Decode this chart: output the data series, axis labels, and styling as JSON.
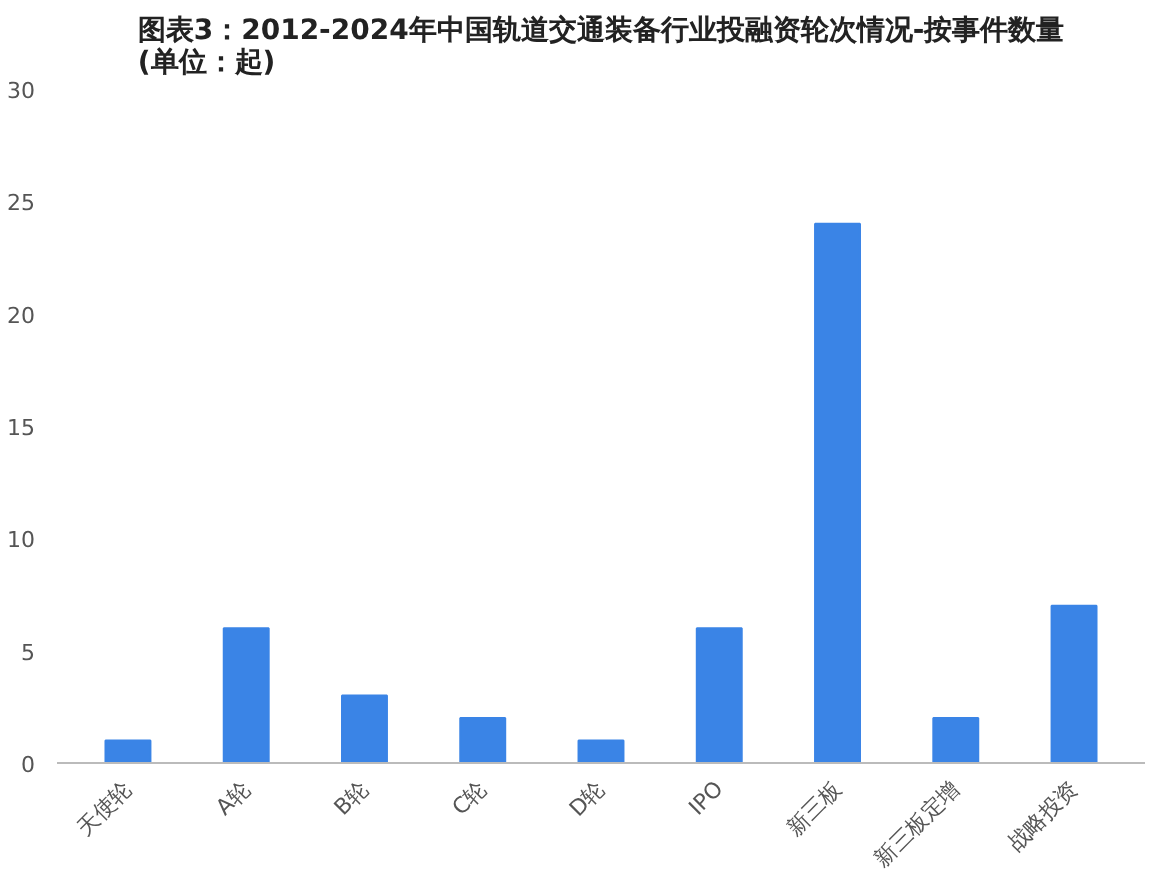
{
  "chart_data": {
    "type": "bar",
    "title": "图表3：2012-2024年中国轨道交通装备行业投融资轮次情况-按事件数量\n(单位：起)",
    "categories": [
      "天使轮",
      "A轮",
      "B轮",
      "C轮",
      "D轮",
      "IPO",
      "新三板",
      "新三板定增",
      "战略投资"
    ],
    "values": [
      1,
      6,
      3,
      2,
      1,
      6,
      24,
      2,
      7
    ],
    "color": "#3a84e6",
    "ylim": [
      0,
      30
    ],
    "yticks": [
      0,
      5,
      10,
      15,
      20,
      25,
      30
    ],
    "grid": false
  }
}
